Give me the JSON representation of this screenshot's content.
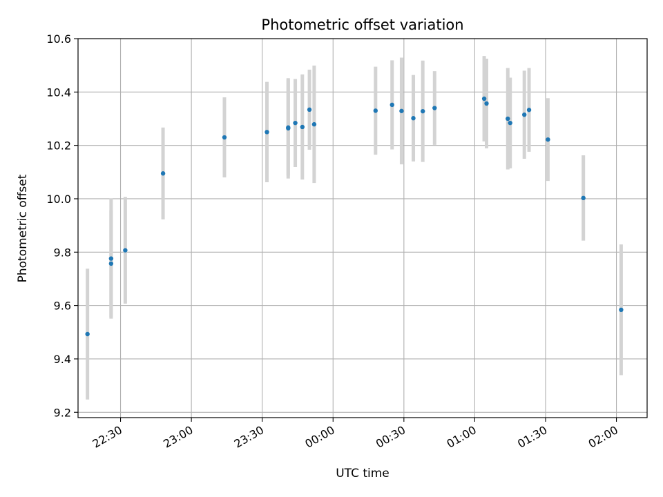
{
  "chart_data": {
    "type": "scatter",
    "title": "Photometric offset variation",
    "xlabel": "UTC time",
    "ylabel": "Photometric offset",
    "x_unit": "time of day (HH:MM, UTC), night spanning midnight",
    "xlim": [
      "22:12",
      "02:13"
    ],
    "ylim": [
      9.18,
      10.6
    ],
    "x_ticks": [
      "22:30",
      "23:00",
      "23:30",
      "00:00",
      "00:30",
      "01:00",
      "01:30",
      "02:00"
    ],
    "y_ticks": [
      9.2,
      9.4,
      9.6,
      9.8,
      10.0,
      10.2,
      10.4,
      10.6
    ],
    "y_tick_labels": [
      "9.2",
      "9.4",
      "9.6",
      "9.8",
      "10.0",
      "10.2",
      "10.4",
      "10.6"
    ],
    "grid": true,
    "colors": {
      "point": "#1f77b4",
      "errorbar": "#d3d3d3",
      "grid": "#b0b0b0"
    },
    "points": [
      {
        "x": "22:16",
        "y": 9.493,
        "err": 0.245
      },
      {
        "x": "22:26",
        "y": 9.757,
        "err": 0.2
      },
      {
        "x": "22:26",
        "y": 9.776,
        "err": 0.225
      },
      {
        "x": "22:32",
        "y": 9.807,
        "err": 0.2
      },
      {
        "x": "22:48",
        "y": 10.095,
        "err": 0.172
      },
      {
        "x": "23:14",
        "y": 10.23,
        "err": 0.15
      },
      {
        "x": "23:32",
        "y": 10.25,
        "err": 0.188
      },
      {
        "x": "23:41",
        "y": 10.264,
        "err": 0.188
      },
      {
        "x": "23:41",
        "y": 10.267,
        "err": 0.18
      },
      {
        "x": "23:44",
        "y": 10.284,
        "err": 0.165
      },
      {
        "x": "23:47",
        "y": 10.269,
        "err": 0.197
      },
      {
        "x": "23:50",
        "y": 10.334,
        "err": 0.15
      },
      {
        "x": "23:52",
        "y": 10.279,
        "err": 0.22
      },
      {
        "x": "00:18",
        "y": 10.33,
        "err": 0.165
      },
      {
        "x": "00:25",
        "y": 10.352,
        "err": 0.167
      },
      {
        "x": "00:29",
        "y": 10.329,
        "err": 0.2
      },
      {
        "x": "00:34",
        "y": 10.302,
        "err": 0.162
      },
      {
        "x": "00:38",
        "y": 10.328,
        "err": 0.19
      },
      {
        "x": "00:43",
        "y": 10.34,
        "err": 0.138
      },
      {
        "x": "01:04",
        "y": 10.375,
        "err": 0.16
      },
      {
        "x": "01:05",
        "y": 10.357,
        "err": 0.168
      },
      {
        "x": "01:14",
        "y": 10.3,
        "err": 0.19
      },
      {
        "x": "01:15",
        "y": 10.284,
        "err": 0.17
      },
      {
        "x": "01:21",
        "y": 10.315,
        "err": 0.165
      },
      {
        "x": "01:23",
        "y": 10.333,
        "err": 0.157
      },
      {
        "x": "01:31",
        "y": 10.222,
        "err": 0.155
      },
      {
        "x": "01:46",
        "y": 10.003,
        "err": 0.16
      },
      {
        "x": "02:02",
        "y": 9.584,
        "err": 0.245
      }
    ]
  }
}
